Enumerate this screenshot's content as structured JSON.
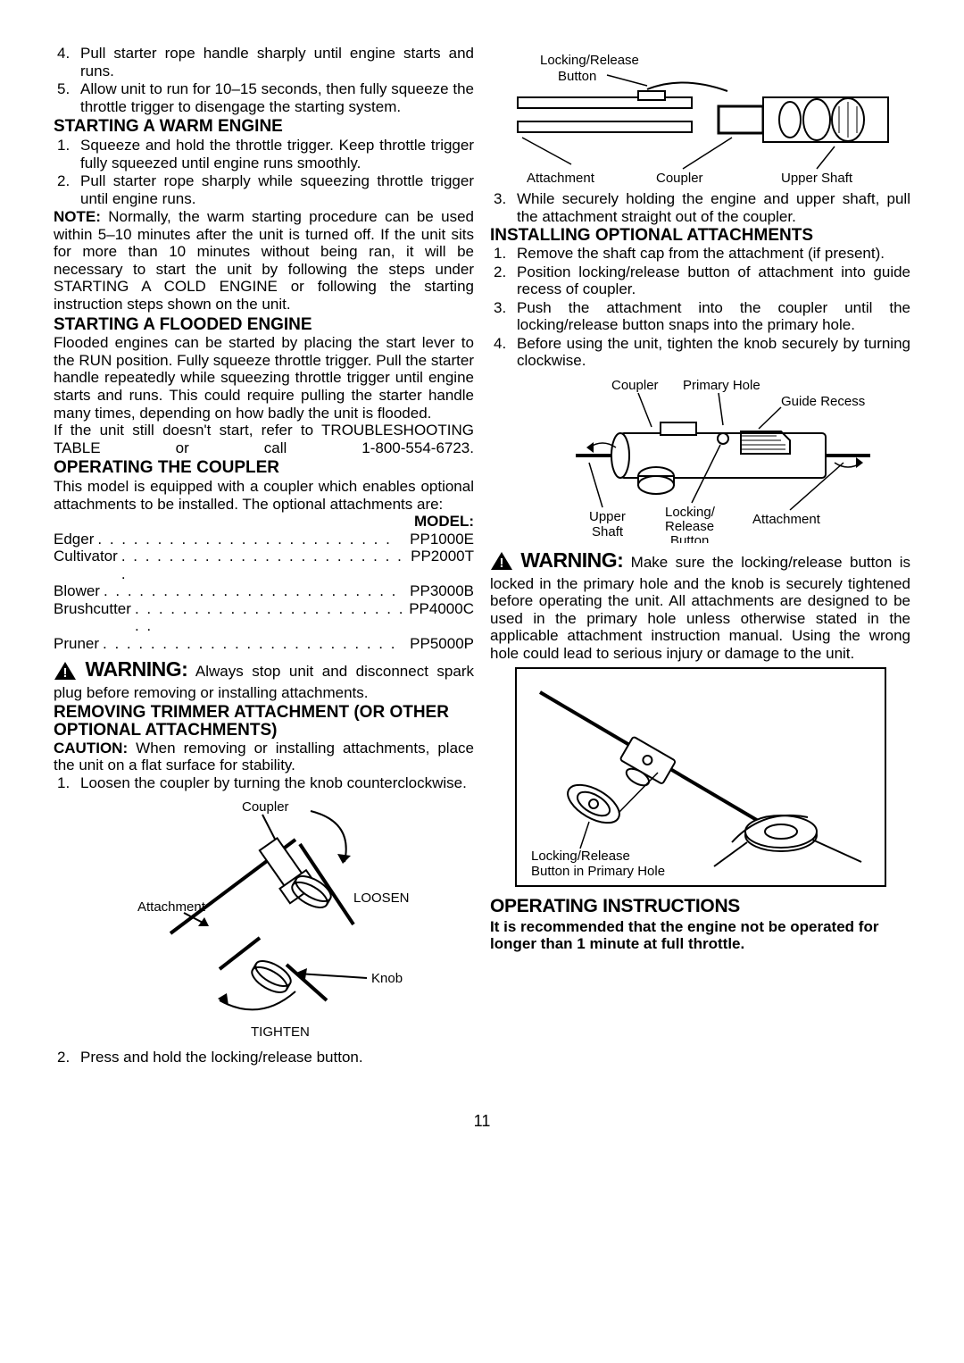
{
  "left": {
    "list1": [
      {
        "n": "4.",
        "t": "Pull starter rope handle sharply until engine starts and runs."
      },
      {
        "n": "5.",
        "t": "Allow unit to run for 10–15 seconds, then fully squeeze the throttle trigger to disengage the starting system."
      }
    ],
    "h1": "STARTING A WARM ENGINE",
    "list2": [
      {
        "n": "1.",
        "t": "Squeeze and hold the throttle trigger. Keep throttle trigger fully squeezed until engine runs smoothly."
      },
      {
        "n": "2.",
        "t": "Pull starter rope sharply while squeezing throttle trigger until engine runs."
      }
    ],
    "noteLabel": "NOTE:",
    "noteBody": " Normally, the warm starting procedure can be used within 5–10 minutes after the unit is turned off. If the unit sits for more than 10 minutes without being ran, it will be necessary to start the unit by following the steps under STARTING A COLD ENGINE or following the starting instruction steps shown on the unit.",
    "h2": "STARTING A FLOODED ENGINE",
    "floodBody": "Flooded engines can be started by placing the start lever to the RUN position. Fully squeeze throttle trigger. Pull the starter handle repeatedly while squeezing throttle trigger until engine starts and runs. This could require pulling the starter handle many times, depending on how badly the unit is flooded.",
    "floodBody2": "If the unit still doesn't start, refer to TROUBLESHOOTING TABLE or call 1-800-554-6723.",
    "h3": "OPERATING THE COUPLER",
    "couplerBody": "This model is equipped with a coupler which enables optional attachments to be installed. The optional attachments are:",
    "modelHeader": "MODEL:",
    "attachments": [
      {
        "name": "Edger",
        "model": "PP1000E"
      },
      {
        "name": "Cultivator",
        "model": "PP2000T"
      },
      {
        "name": "Blower",
        "model": "PP3000B"
      },
      {
        "name": "Brushcutter",
        "model": "PP4000C"
      },
      {
        "name": "Pruner",
        "model": "PP5000P"
      }
    ],
    "warn1Label": "WARNING:",
    "warn1Body": " Always stop unit and disconnect spark plug before removing or installing attachments.",
    "h4": "REMOVING TRIMMER ATTACHMENT (OR OTHER OPTIONAL ATTACHMENTS)",
    "cautionLabel": "CAUTION:",
    "cautionBody": " When removing or installing attachments, place the unit on a flat surface for stability.",
    "list3": [
      {
        "n": "1.",
        "t": "Loosen the coupler by turning the knob counterclockwise."
      }
    ],
    "diag1": {
      "coupler": "Coupler",
      "attachment": "Attachment",
      "loosen": "LOOSEN",
      "knob": "Knob",
      "tighten": "TIGHTEN"
    },
    "list4": [
      {
        "n": "2.",
        "t": "Press and hold the locking/release button."
      }
    ]
  },
  "right": {
    "diag2": {
      "lockRelease": "Locking/Release",
      "button": "Button",
      "attachment": "Attachment",
      "coupler": "Coupler",
      "upperShaft": "Upper Shaft"
    },
    "list1": [
      {
        "n": "3.",
        "t": "While securely holding the engine and upper shaft, pull the attachment straight out of the coupler."
      }
    ],
    "h1": "INSTALLING OPTIONAL ATTACHMENTS",
    "list2": [
      {
        "n": "1.",
        "t": "Remove the shaft cap from the attachment (if present)."
      },
      {
        "n": "2.",
        "t": "Position locking/release button of attachment into guide recess of coupler."
      },
      {
        "n": "3.",
        "t": "Push the attachment into the coupler until the locking/release button snaps into the primary hole."
      },
      {
        "n": "4.",
        "t": "Before using the unit, tighten the knob securely by turning clockwise."
      }
    ],
    "diag3": {
      "coupler": "Coupler",
      "primaryHole": "Primary Hole",
      "guideRecess": "Guide Recess",
      "upperShaft": "Upper",
      "shaft": "Shaft",
      "locking": "Locking/",
      "release": "Release",
      "button": "Button",
      "attachment": "Attachment"
    },
    "warn1Label": "WARNING:",
    "warn1Body": " Make sure the locking/release button is locked in the primary hole and the knob is securely tightened before operating the unit. All attachments are designed to be used in the primary hole unless otherwise stated in the applicable attachment instruction manual. Using the wrong hole could lead to serious injury or damage to the unit.",
    "diag4": {
      "label": "Locking/Release",
      "label2": "Button in Primary Hole"
    },
    "opHeading": "OPERATING INSTRUCTIONS",
    "opRec": "It is recommended that the engine not be operated for longer than 1 minute at full throttle."
  },
  "pageNumber": "11"
}
